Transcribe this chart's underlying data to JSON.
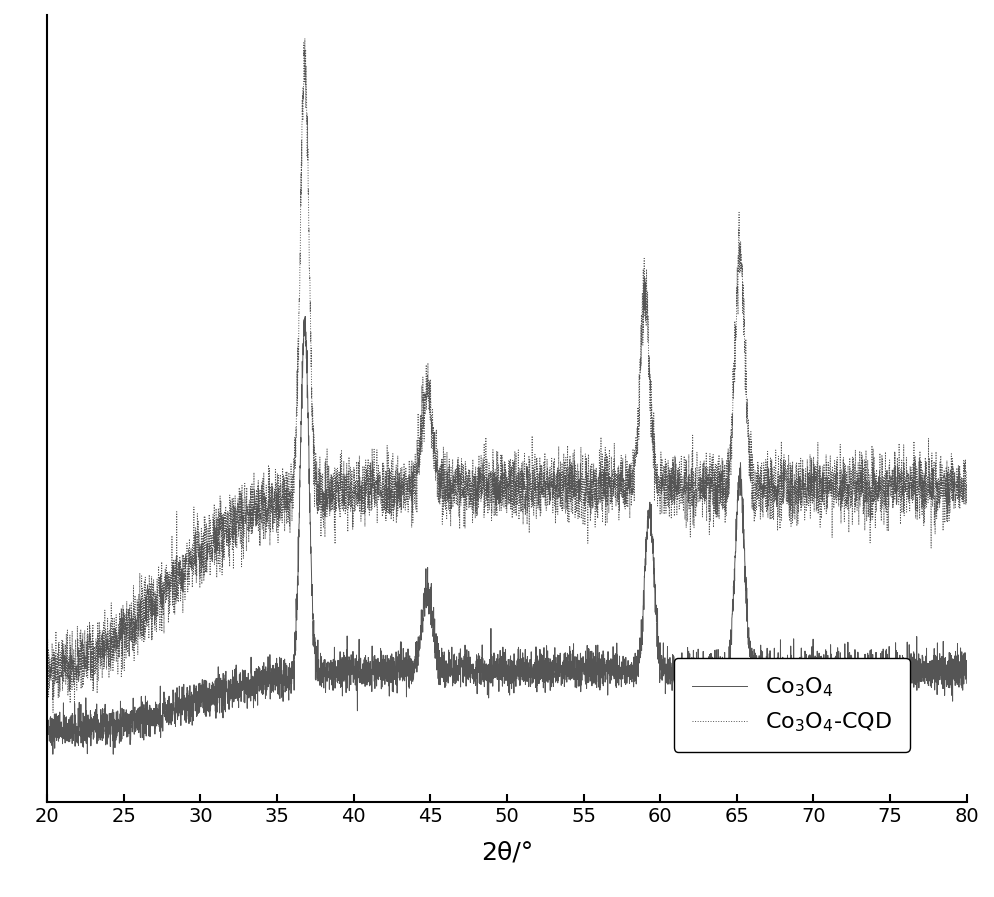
{
  "xlabel": "2θ/°",
  "xlim": [
    20,
    80
  ],
  "xticks": [
    20,
    25,
    30,
    35,
    40,
    45,
    50,
    55,
    60,
    65,
    70,
    75,
    80
  ],
  "line_color": "#555555",
  "background_color": "#ffffff",
  "legend_labels": [
    "Co$_3$O$_4$",
    "Co$_3$O$_4$-CQD"
  ],
  "seed_solid": 42,
  "seed_dotted": 99
}
